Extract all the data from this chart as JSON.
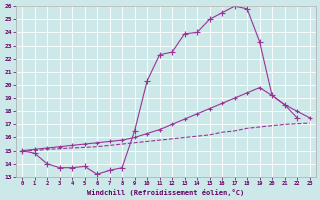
{
  "xlabel": "Windchill (Refroidissement éolien,°C)",
  "bg_color": "#cce8e8",
  "line_color": "#993399",
  "grid_color": "#aacccc",
  "xlim": [
    -0.5,
    23.5
  ],
  "ylim": [
    13,
    26
  ],
  "xticks": [
    0,
    1,
    2,
    3,
    4,
    5,
    6,
    7,
    8,
    9,
    10,
    11,
    12,
    13,
    14,
    15,
    16,
    17,
    18,
    19,
    20,
    21,
    22,
    23
  ],
  "yticks": [
    13,
    14,
    15,
    16,
    17,
    18,
    19,
    20,
    21,
    22,
    23,
    24,
    25,
    26
  ],
  "line1_x": [
    0,
    1,
    2,
    3,
    4,
    5,
    6,
    7,
    8,
    9,
    10,
    11,
    12,
    13,
    14,
    15,
    16,
    17,
    18,
    19,
    20,
    21,
    22,
    23
  ],
  "line1_y": [
    15.0,
    14.8,
    14.0,
    13.7,
    13.7,
    13.8,
    13.2,
    13.5,
    13.7,
    16.5,
    20.3,
    22.3,
    22.5,
    23.9,
    24.0,
    25.0,
    25.5,
    26.0,
    25.8,
    23.3,
    19.2,
    18.5,
    17.5,
    null
  ],
  "line2_x": [
    0,
    1,
    2,
    3,
    4,
    5,
    6,
    7,
    8,
    9,
    10,
    11,
    12,
    13,
    14,
    15,
    16,
    17,
    18,
    19,
    20,
    21,
    22,
    23
  ],
  "line2_y": [
    15.0,
    15.1,
    15.2,
    15.3,
    15.4,
    15.5,
    15.6,
    15.7,
    15.8,
    16.0,
    16.3,
    16.6,
    17.0,
    17.4,
    17.8,
    18.2,
    18.6,
    19.0,
    19.4,
    19.8,
    19.2,
    18.5,
    18.0,
    17.5
  ],
  "line3_x": [
    0,
    1,
    2,
    3,
    4,
    5,
    6,
    7,
    8,
    9,
    10,
    11,
    12,
    13,
    14,
    15,
    16,
    17,
    18,
    19,
    20,
    21,
    22,
    23
  ],
  "line3_y": [
    15.0,
    15.0,
    15.1,
    15.15,
    15.2,
    15.25,
    15.3,
    15.4,
    15.5,
    15.6,
    15.7,
    15.8,
    15.9,
    16.0,
    16.1,
    16.2,
    16.4,
    16.5,
    16.7,
    16.8,
    16.9,
    17.0,
    17.05,
    17.1
  ]
}
